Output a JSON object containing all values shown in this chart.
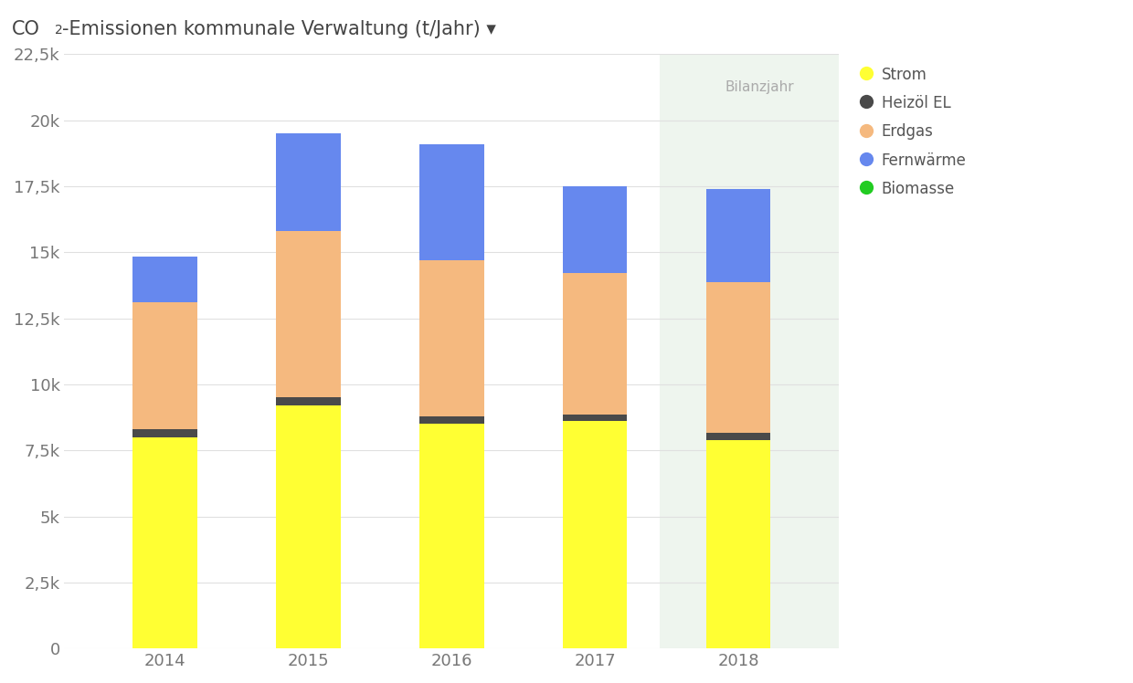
{
  "years": [
    "2014",
    "2015",
    "2016",
    "2017",
    "2018"
  ],
  "strom": [
    8000,
    9200,
    8500,
    8600,
    7900
  ],
  "heizoel": [
    300,
    300,
    300,
    250,
    280
  ],
  "erdgas": [
    4800,
    6300,
    5900,
    5350,
    5700
  ],
  "fernwaerme": [
    1750,
    3700,
    4400,
    3300,
    3500
  ],
  "biomasse": [
    0,
    0,
    0,
    0,
    0
  ],
  "colors": {
    "strom": "#FFFF33",
    "heizoel": "#4a4a4a",
    "erdgas": "#F5B97F",
    "fernwaerme": "#6688EE",
    "biomasse": "#22CC22"
  },
  "bilanzjahr_year": "2018",
  "bilanzjahr_label": "Bilanzjahr",
  "title": "CO₂-Emissionen kommunale Verwaltung (t/Jahr) ▾",
  "ylim": [
    0,
    22500
  ],
  "yticks": [
    0,
    2500,
    5000,
    7500,
    10000,
    12500,
    15000,
    17500,
    20000,
    22500
  ],
  "ytick_labels": [
    "0",
    "2,5k",
    "5k",
    "7,5k",
    "10k",
    "12,5k",
    "15k",
    "17,5k",
    "20k",
    "22,5k"
  ],
  "legend_labels": [
    "Strom",
    "Heizöl EL",
    "Erdgas",
    "Fernwärme",
    "Biomasse"
  ],
  "background_color": "#ffffff",
  "plot_bg_color": "#ffffff",
  "bilanzjahr_bg": "#eef5ee",
  "grid_color": "#e0e0e0",
  "bar_width": 0.45
}
